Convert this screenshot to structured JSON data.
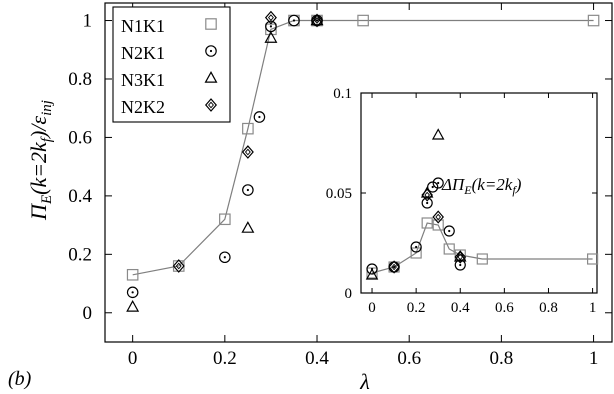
{
  "panel_label": "(b)",
  "colors": {
    "line": "#7f7f7f",
    "axis": "#000000",
    "marker_N1K1": "#8a8a8a",
    "marker_other": "#000000"
  },
  "chart_data": [
    {
      "type": "scatter",
      "title": "",
      "xlabel": "λ",
      "ylabel": "Π_E(k=2k_f)/ε_inj",
      "ylabel_parts": {
        "main": "Π",
        "sub": "E",
        "mid": "(k=2k",
        "sub2": "f",
        "end": ")/ε",
        "sub3": "inj"
      },
      "xlim": [
        -0.06,
        1.04
      ],
      "ylim": [
        -0.1,
        1.06
      ],
      "xticks": [
        0,
        0.2,
        0.4,
        0.6,
        0.8,
        1
      ],
      "xtick_labels": [
        "0",
        "0.2",
        "0.4",
        "0.6",
        "0.8",
        "1"
      ],
      "yticks": [
        0,
        0.2,
        0.4,
        0.6,
        0.8,
        1
      ],
      "ytick_labels": [
        "0",
        "0.2",
        "0.4",
        "0.6",
        "0.8",
        "1"
      ],
      "grid": false,
      "legend_position": "top-left",
      "series": [
        {
          "name": "N1K1",
          "marker": "square",
          "connected": true,
          "x": [
            0,
            0.1,
            0.2,
            0.25,
            0.3,
            0.35,
            0.4,
            0.5,
            1.0
          ],
          "y": [
            0.13,
            0.16,
            0.32,
            0.63,
            0.97,
            1.0,
            1.0,
            1.0,
            1.0
          ]
        },
        {
          "name": "N2K1",
          "marker": "circle",
          "x": [
            0,
            0.2,
            0.25,
            0.275,
            0.3,
            0.35,
            0.4
          ],
          "y": [
            0.07,
            0.19,
            0.42,
            0.67,
            0.98,
            1.0,
            1.0
          ]
        },
        {
          "name": "N3K1",
          "marker": "triangle",
          "x": [
            0,
            0.25,
            0.3,
            0.4
          ],
          "y": [
            0.02,
            0.29,
            0.94,
            1.0
          ]
        },
        {
          "name": "N2K2",
          "marker": "diamond",
          "x": [
            0.1,
            0.25,
            0.3,
            0.4
          ],
          "y": [
            0.16,
            0.55,
            1.01,
            1.0
          ]
        }
      ]
    },
    {
      "type": "scatter",
      "title": "",
      "annotation_parts": {
        "pre": "ΔΠ",
        "sub": "E",
        "mid": "(k=2k",
        "sub2": "f",
        "end": ")"
      },
      "xlim": [
        -0.05,
        1.02
      ],
      "ylim": [
        0,
        0.1
      ],
      "xticks": [
        0,
        0.2,
        0.4,
        0.6,
        0.8,
        1
      ],
      "xtick_labels": [
        "0",
        "0.2",
        "0.4",
        "0.6",
        "0.8",
        "1"
      ],
      "yticks": [
        0,
        0.05,
        0.1
      ],
      "ytick_labels": [
        "0",
        "0.05",
        "0.1"
      ],
      "grid": false,
      "series": [
        {
          "name": "N1K1",
          "marker": "square",
          "connected": true,
          "x": [
            0,
            0.1,
            0.2,
            0.25,
            0.3,
            0.35,
            0.4,
            0.5,
            1.0
          ],
          "y": [
            0.01,
            0.013,
            0.02,
            0.035,
            0.034,
            0.022,
            0.019,
            0.017,
            0.017
          ]
        },
        {
          "name": "N2K1",
          "marker": "circle",
          "x": [
            0,
            0.1,
            0.2,
            0.25,
            0.275,
            0.3,
            0.35,
            0.4
          ],
          "y": [
            0.012,
            0.013,
            0.023,
            0.045,
            0.053,
            0.055,
            0.031,
            0.014
          ]
        },
        {
          "name": "N3K1",
          "marker": "triangle",
          "x": [
            0,
            0.25,
            0.3,
            0.4
          ],
          "y": [
            0.009,
            0.05,
            0.079,
            0.018
          ]
        },
        {
          "name": "N2K2",
          "marker": "diamond",
          "x": [
            0.1,
            0.25,
            0.3,
            0.4
          ],
          "y": [
            0.013,
            0.049,
            0.038,
            0.018
          ]
        }
      ]
    }
  ]
}
